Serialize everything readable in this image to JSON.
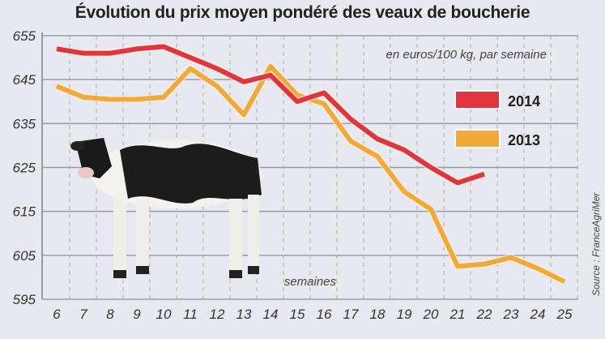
{
  "chart_data": {
    "type": "line",
    "title": "Évolution du prix moyen pondéré des veaux de boucherie",
    "unit_note": "en euros/100 kg, par semaine",
    "xlabel": "semaines",
    "source": "Source : FranceAgriMer",
    "x": [
      6,
      7,
      8,
      9,
      10,
      11,
      12,
      13,
      14,
      15,
      16,
      17,
      18,
      19,
      20,
      21,
      22,
      23,
      24,
      25
    ],
    "y_ticks": [
      595,
      605,
      615,
      625,
      635,
      645,
      655
    ],
    "ylim": [
      595,
      655
    ],
    "grid": true,
    "legend_position": "right",
    "series": [
      {
        "name": "2014",
        "color": "#e0343f",
        "values": [
          652,
          651,
          651,
          652,
          652.5,
          650,
          647.5,
          644.5,
          646,
          640,
          642,
          636,
          631.5,
          629,
          625,
          621.5,
          623.5,
          null,
          null,
          null
        ]
      },
      {
        "name": "2013",
        "color": "#f2a93b",
        "values": [
          643.5,
          641,
          640.5,
          640.5,
          641,
          647.5,
          643.5,
          637,
          648,
          641.5,
          639.5,
          631,
          627.5,
          619.5,
          615.5,
          602.5,
          603,
          604.5,
          602,
          599
        ]
      }
    ]
  }
}
